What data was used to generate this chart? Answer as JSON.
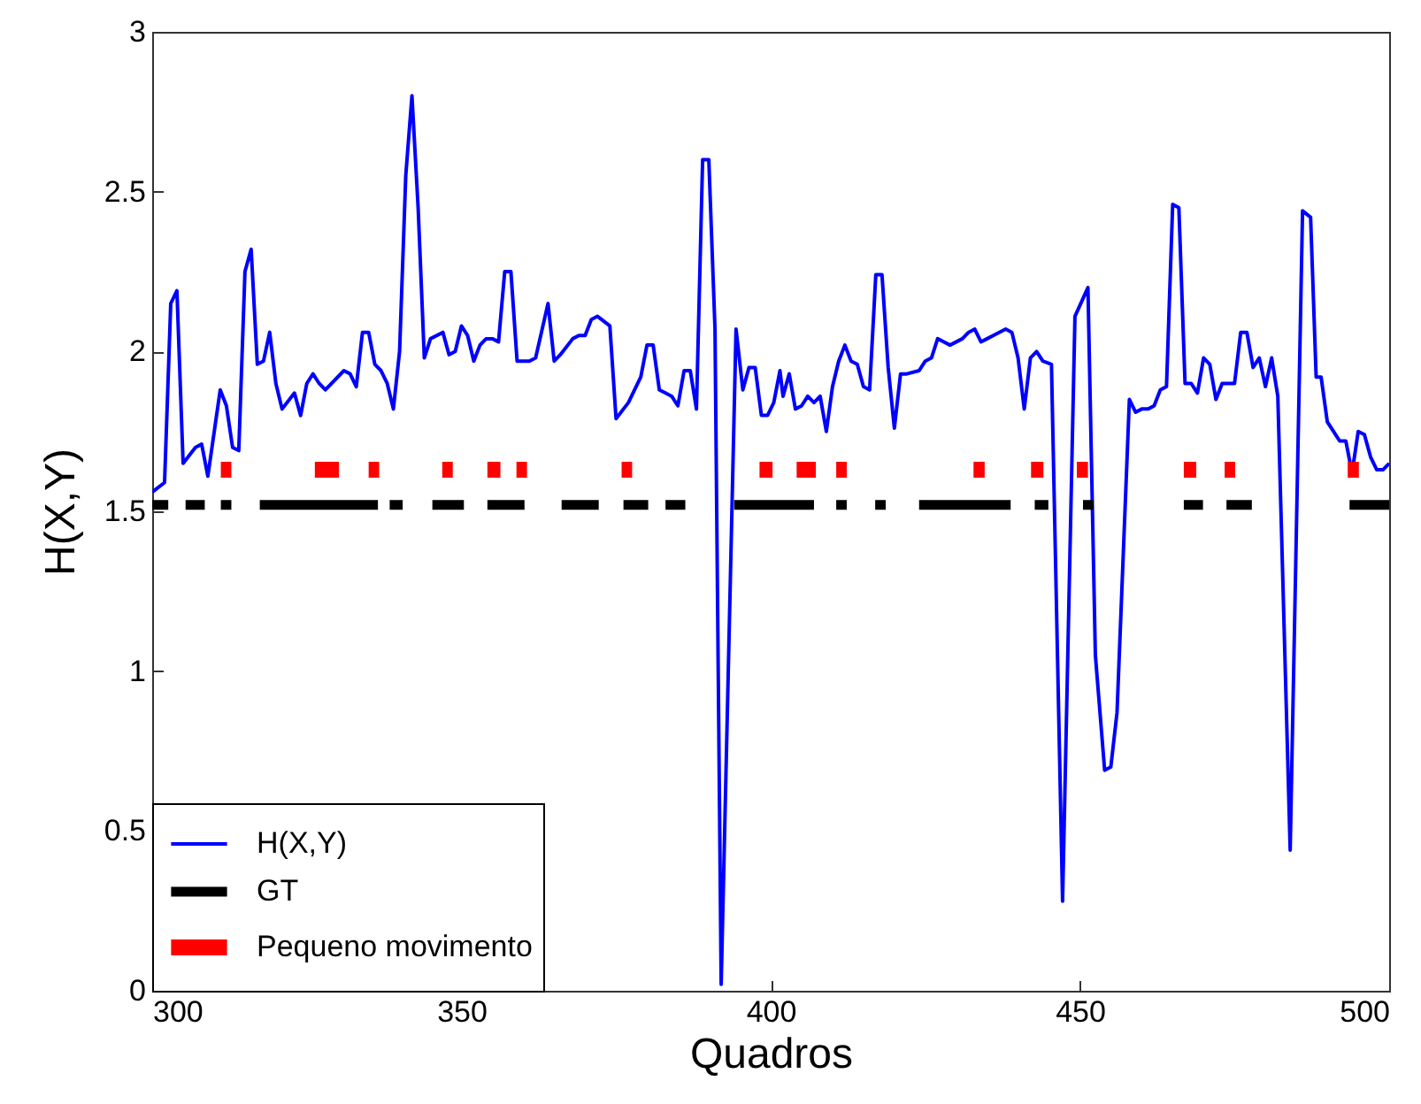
{
  "chart_data": {
    "type": "line",
    "xlabel": "Quadros",
    "ylabel": "H(X,Y)",
    "xlim": [
      300,
      500
    ],
    "xticks": [
      300,
      350,
      400,
      450,
      500
    ],
    "ylim": [
      0,
      3
    ],
    "yticks": [
      {
        "value": 0,
        "label": "0"
      },
      0.5,
      {
        "value": 1,
        "label": "1"
      },
      1.5,
      {
        "value": 2,
        "label": "2"
      },
      2.5,
      {
        "value": 3,
        "label": "3"
      }
    ],
    "grid": false,
    "legend": "bottom left",
    "series": [
      {
        "name": "H(X,Y)",
        "color": "#0000ff",
        "x": [
          300,
          302,
          303,
          304,
          305,
          307,
          308,
          309,
          311,
          312,
          313,
          314,
          315,
          316,
          317,
          318,
          319,
          320,
          321,
          323,
          324,
          325,
          326,
          327,
          328,
          330,
          331,
          332,
          333,
          334,
          335,
          336,
          337,
          338,
          339,
          340,
          341,
          342,
          343,
          344,
          345,
          347,
          348,
          349,
          350,
          351,
          352,
          353,
          354,
          355,
          356,
          357,
          358,
          359,
          361,
          362,
          364,
          365,
          366,
          368,
          369,
          370,
          371,
          372,
          374,
          375,
          377,
          379,
          380,
          381,
          382,
          383,
          384,
          385,
          386,
          387,
          388,
          389,
          390,
          391,
          392,
          394.4,
          395.5,
          396.5,
          397.5,
          398.5,
          399.5,
          400.5,
          401.5,
          402,
          403,
          404,
          405,
          406,
          407,
          408,
          409,
          410,
          411,
          412,
          413,
          414,
          415,
          416,
          417,
          418,
          419,
          420,
          421,
          422,
          424,
          425,
          426,
          427,
          428,
          429,
          431,
          432,
          433,
          434,
          435,
          436,
          438,
          439,
          440,
          441,
          442,
          443,
          444,
          445.4,
          447.2,
          449.2,
          451.3,
          452.5,
          454,
          455,
          456,
          458,
          459,
          460,
          461,
          462,
          463,
          464,
          465,
          466,
          467,
          468,
          469,
          470,
          471,
          472,
          473,
          474,
          475,
          476,
          477,
          478,
          479,
          480,
          481,
          482,
          484,
          486,
          487.3,
          488.2,
          489,
          490,
          491,
          492,
          493,
          494,
          495,
          496,
          497,
          498,
          499,
          500
        ],
        "values": [
          1.56,
          1.59,
          2.15,
          2.19,
          1.65,
          1.7,
          1.71,
          1.61,
          1.88,
          1.83,
          1.7,
          1.69,
          2.25,
          2.32,
          1.96,
          1.97,
          2.06,
          1.9,
          1.82,
          1.87,
          1.8,
          1.9,
          1.93,
          1.9,
          1.88,
          1.92,
          1.94,
          1.93,
          1.89,
          2.06,
          2.06,
          1.96,
          1.94,
          1.9,
          1.82,
          2.0,
          2.55,
          2.8,
          2.45,
          1.98,
          2.04,
          2.06,
          1.99,
          2.0,
          2.08,
          2.05,
          1.97,
          2.02,
          2.04,
          2.04,
          2.03,
          2.25,
          2.25,
          1.97,
          1.97,
          1.98,
          2.15,
          1.97,
          1.99,
          2.04,
          2.05,
          2.05,
          2.1,
          2.11,
          2.08,
          1.79,
          1.84,
          1.92,
          2.02,
          2.02,
          1.88,
          1.87,
          1.86,
          1.83,
          1.94,
          1.94,
          1.82,
          2.6,
          2.6,
          2.07,
          0.02,
          2.07,
          1.88,
          1.95,
          1.95,
          1.8,
          1.8,
          1.84,
          1.94,
          1.86,
          1.93,
          1.82,
          1.83,
          1.86,
          1.84,
          1.86,
          1.75,
          1.89,
          1.97,
          2.02,
          1.97,
          1.96,
          1.89,
          1.88,
          2.24,
          2.24,
          1.95,
          1.76,
          1.93,
          1.93,
          1.94,
          1.97,
          1.98,
          2.04,
          2.03,
          2.02,
          2.04,
          2.06,
          2.07,
          2.03,
          2.04,
          2.05,
          2.07,
          2.06,
          1.98,
          1.82,
          1.98,
          2.0,
          1.97,
          1.96,
          0.28,
          2.11,
          2.2,
          1.05,
          0.69,
          0.7,
          0.87,
          1.85,
          1.81,
          1.82,
          1.82,
          1.83,
          1.88,
          1.89,
          2.46,
          2.45,
          1.9,
          1.9,
          1.87,
          1.98,
          1.96,
          1.85,
          1.9,
          1.9,
          1.9,
          2.06,
          2.06,
          1.95,
          1.98,
          1.89,
          1.98,
          1.86,
          0.44,
          2.44,
          2.42,
          1.92,
          1.92,
          1.78,
          1.75,
          1.72,
          1.72,
          1.62,
          1.75,
          1.74,
          1.67,
          1.63,
          1.63,
          1.65
        ]
      },
      {
        "name": "GT",
        "color": "#000000",
        "x": [
          300,
          302.6,
          null,
          305.4,
          308.5,
          null,
          311.1,
          312.8,
          null,
          317.4,
          336.5,
          null,
          338.4,
          340.5,
          null,
          345.3,
          350.4,
          null,
          354.2,
          360.2,
          null,
          366.2,
          372.2,
          null,
          376.2,
          380.2,
          null,
          383,
          386.2,
          null,
          394.1,
          407,
          null,
          410.6,
          412.3,
          null,
          416.9,
          418.6,
          null,
          424,
          438.8,
          null,
          442.7,
          444.9,
          null,
          450.5,
          452.2,
          null,
          466.8,
          469.9,
          null,
          473.7,
          477.8,
          null,
          493.6,
          500
        ],
        "values": [
          1.52,
          1.52,
          null,
          1.52,
          1.52,
          null,
          1.52,
          1.52,
          null,
          1.52,
          1.52,
          null,
          1.52,
          1.52,
          null,
          1.52,
          1.52,
          null,
          1.52,
          1.52,
          null,
          1.52,
          1.52,
          null,
          1.52,
          1.52,
          null,
          1.52,
          1.52,
          null,
          1.52,
          1.52,
          null,
          1.52,
          1.52,
          null,
          1.52,
          1.52,
          null,
          1.52,
          1.52,
          null,
          1.52,
          1.52,
          null,
          1.52,
          1.52,
          null,
          1.52,
          1.52,
          null,
          1.52,
          1.52,
          null,
          1.52,
          1.52
        ]
      },
      {
        "name": "Pequeno movimento",
        "color": "#ff0000",
        "x": [
          311.1,
          312.8,
          null,
          326.3,
          330.2,
          null,
          335,
          336.7,
          null,
          346.9,
          348.6,
          null,
          354.2,
          356.3,
          null,
          358.9,
          360.6,
          null,
          375.9,
          377.6,
          null,
          398.2,
          400.3,
          null,
          404.2,
          407.3,
          null,
          410.6,
          412.3,
          null,
          432.8,
          434.6,
          null,
          442.1,
          444.1,
          null,
          449.5,
          451.3,
          null,
          466.8,
          468.8,
          null,
          473.4,
          475.1,
          null,
          493.3,
          495.1
        ],
        "values": [
          1.63,
          1.63,
          null,
          1.63,
          1.63,
          null,
          1.63,
          1.63,
          null,
          1.63,
          1.63,
          null,
          1.63,
          1.63,
          null,
          1.63,
          1.63,
          null,
          1.63,
          1.63,
          null,
          1.63,
          1.63,
          null,
          1.63,
          1.63,
          null,
          1.63,
          1.63,
          null,
          1.63,
          1.63,
          null,
          1.63,
          1.63,
          null,
          1.63,
          1.63,
          null,
          1.63,
          1.63,
          null,
          1.63,
          1.63,
          null,
          1.63,
          1.63
        ]
      }
    ]
  }
}
